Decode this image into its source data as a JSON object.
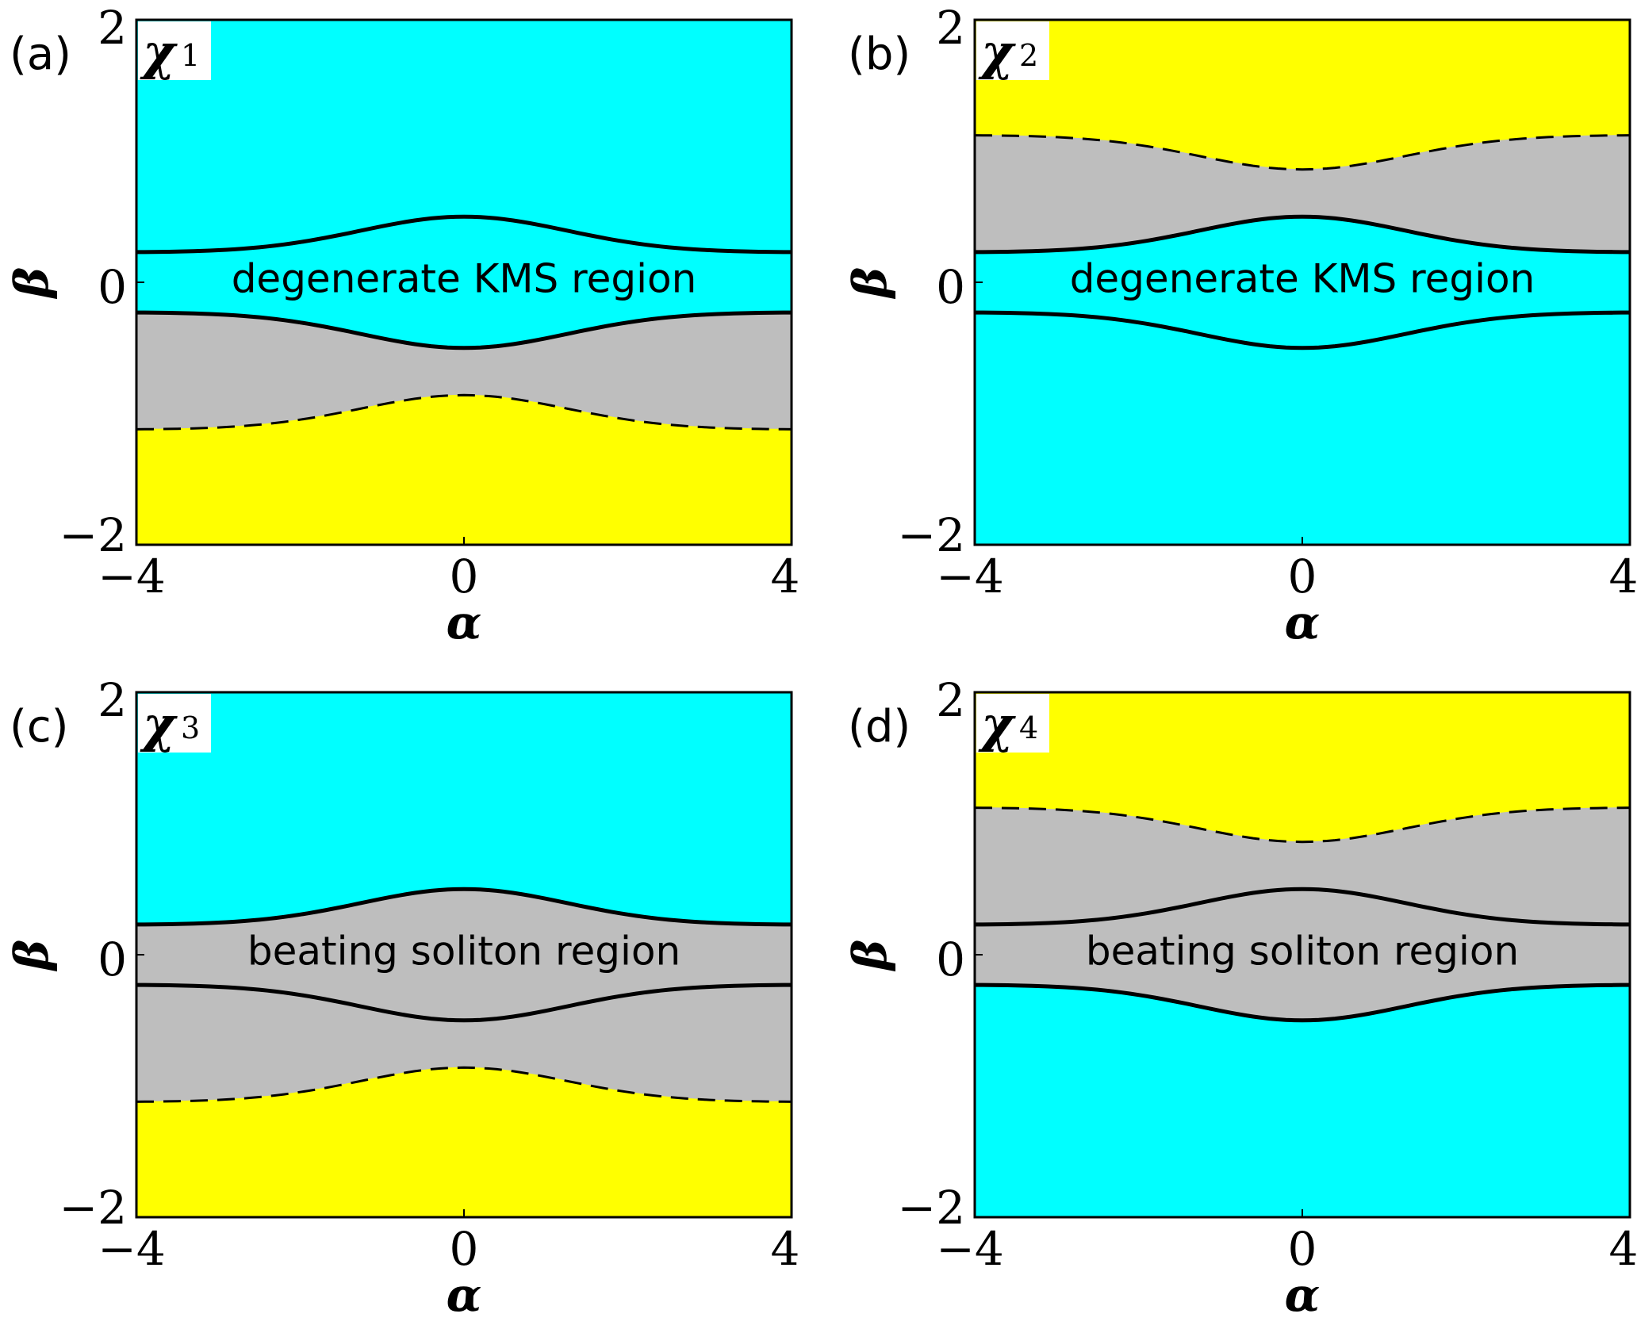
{
  "colors": {
    "cyan": "#00ffff",
    "yellow": "#ffff00",
    "gray": "#bebebe",
    "line": "#000000"
  },
  "chart_data": [
    {
      "type": "area",
      "panel_label": "(a)",
      "title_symbol": "χ",
      "title_index": "1",
      "xlabel": "α",
      "ylabel": "β",
      "xlim": [
        -4,
        4
      ],
      "ylim": [
        -2,
        2
      ],
      "xticks": [
        "−4",
        "0",
        "4"
      ],
      "yticks": [
        "−2",
        "0",
        "2"
      ],
      "annotation": {
        "text": "degenerate KMS region",
        "alpha": 0,
        "beta": 0.02
      },
      "curves": {
        "solid_upper": {
          "alpha": [
            -4,
            0,
            4
          ],
          "beta": [
            0.23,
            0.5,
            0.23
          ]
        },
        "solid_lower": {
          "alpha": [
            -4,
            0,
            4
          ],
          "beta": [
            -0.23,
            -0.5,
            -0.23
          ]
        },
        "dashed": {
          "alpha": [
            -4,
            0,
            4
          ],
          "beta": [
            -1.12,
            -0.86,
            -1.12
          ]
        }
      },
      "bands": [
        "cyan",
        "cyan",
        "gray",
        "yellow"
      ]
    },
    {
      "type": "area",
      "panel_label": "(b)",
      "title_symbol": "χ",
      "title_index": "2",
      "xlabel": "α",
      "ylabel": "β",
      "xlim": [
        -4,
        4
      ],
      "ylim": [
        -2,
        2
      ],
      "xticks": [
        "−4",
        "0",
        "4"
      ],
      "yticks": [
        "−2",
        "0",
        "2"
      ],
      "annotation": {
        "text": "degenerate KMS region",
        "alpha": 0,
        "beta": 0.02
      },
      "curves": {
        "solid_upper": {
          "alpha": [
            -4,
            0,
            4
          ],
          "beta": [
            0.23,
            0.5,
            0.23
          ]
        },
        "solid_lower": {
          "alpha": [
            -4,
            0,
            4
          ],
          "beta": [
            -0.23,
            -0.5,
            -0.23
          ]
        },
        "dashed": {
          "alpha": [
            -4,
            0,
            4
          ],
          "beta": [
            1.12,
            0.86,
            1.12
          ]
        }
      },
      "bands": [
        "yellow",
        "gray",
        "cyan",
        "cyan"
      ]
    },
    {
      "type": "area",
      "panel_label": "(c)",
      "title_symbol": "χ",
      "title_index": "3",
      "xlabel": "α",
      "ylabel": "β",
      "xlim": [
        -4,
        4
      ],
      "ylim": [
        -2,
        2
      ],
      "xticks": [
        "−4",
        "0",
        "4"
      ],
      "yticks": [
        "−2",
        "0",
        "2"
      ],
      "annotation": {
        "text": "beating soliton region",
        "alpha": 0,
        "beta": 0.02
      },
      "curves": {
        "solid_upper": {
          "alpha": [
            -4,
            0,
            4
          ],
          "beta": [
            0.23,
            0.5,
            0.23
          ]
        },
        "solid_lower": {
          "alpha": [
            -4,
            0,
            4
          ],
          "beta": [
            -0.23,
            -0.5,
            -0.23
          ]
        },
        "dashed": {
          "alpha": [
            -4,
            0,
            4
          ],
          "beta": [
            -1.12,
            -0.86,
            -1.12
          ]
        }
      },
      "bands": [
        "cyan",
        "gray",
        "gray",
        "yellow"
      ]
    },
    {
      "type": "area",
      "panel_label": "(d)",
      "title_symbol": "χ",
      "title_index": "4",
      "xlabel": "α",
      "ylabel": "β",
      "xlim": [
        -4,
        4
      ],
      "ylim": [
        -2,
        2
      ],
      "xticks": [
        "−4",
        "0",
        "4"
      ],
      "yticks": [
        "−2",
        "0",
        "2"
      ],
      "annotation": {
        "text": "beating soliton region",
        "alpha": 0,
        "beta": 0.02
      },
      "curves": {
        "solid_upper": {
          "alpha": [
            -4,
            0,
            4
          ],
          "beta": [
            0.23,
            0.5,
            0.23
          ]
        },
        "solid_lower": {
          "alpha": [
            -4,
            0,
            4
          ],
          "beta": [
            -0.23,
            -0.5,
            -0.23
          ]
        },
        "dashed": {
          "alpha": [
            -4,
            0,
            4
          ],
          "beta": [
            1.12,
            0.86,
            1.12
          ]
        }
      },
      "bands": [
        "yellow",
        "gray",
        "gray",
        "cyan"
      ]
    }
  ]
}
